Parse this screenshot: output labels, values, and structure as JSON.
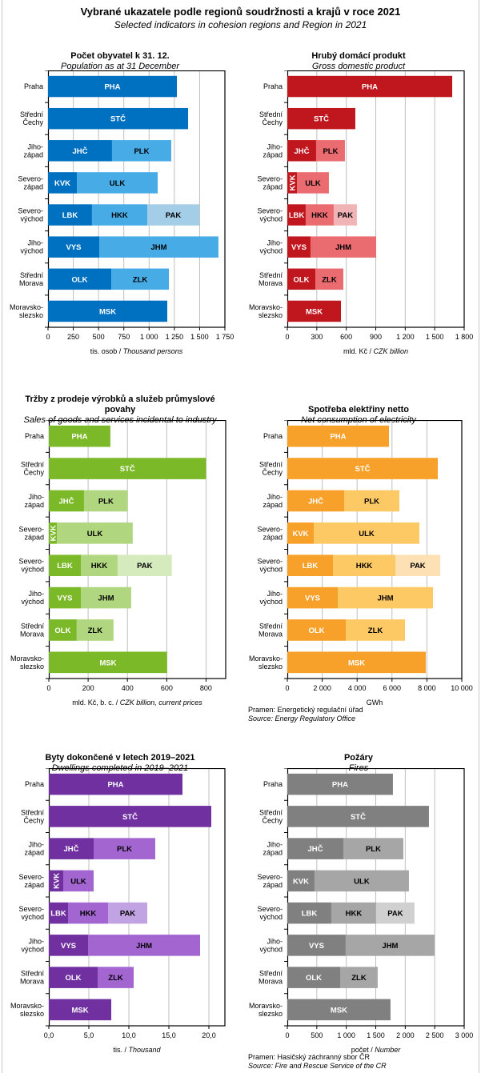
{
  "header": {
    "title": "Vybrané ukazatele podle regionů soudržnosti a krajů v roce 2021",
    "subtitle": "Selected indicators in cohesion regions and Region in 2021"
  },
  "chart_data": [
    {
      "id": "population",
      "type": "bar",
      "stacked": true,
      "orientation": "horizontal",
      "title": "Počet obyvatel k 31. 12.",
      "title_line2": "",
      "subtitle": "Population as at 31 December",
      "xlabel": "tis. osob / ",
      "xlabel_it": "Thousand persons",
      "xlim": [
        0,
        1750
      ],
      "ticks": [
        0,
        250,
        500,
        750,
        1000,
        1250,
        1500,
        1750
      ],
      "tick_labels": [
        "0",
        "250",
        "500",
        "750",
        "1 000",
        "1 250",
        "1 500",
        "1 750"
      ],
      "grid": true,
      "colors": [
        "#0070c0",
        "#47abe6",
        "#a4cde8"
      ],
      "label_colors": [
        "#ffffff",
        "#000000",
        "#000000"
      ],
      "categories": [
        "Praha",
        "Střední|Čechy",
        "Jiho-|západ",
        "Severo-|západ",
        "Severo-|východ",
        "Jiho-|východ",
        "Střední|Morava",
        "Moravsko-|slezsko"
      ],
      "segments": [
        [
          {
            "label": "PHA",
            "value": 1275
          }
        ],
        [
          {
            "label": "STČ",
            "value": 1386
          }
        ],
        [
          {
            "label": "JHČ",
            "value": 633
          },
          {
            "label": "PLK",
            "value": 586
          }
        ],
        [
          {
            "label": "KVK",
            "value": 285
          },
          {
            "label": "ULK",
            "value": 800
          }
        ],
        [
          {
            "label": "LBK",
            "value": 435
          },
          {
            "label": "HKK",
            "value": 547
          },
          {
            "label": "PAK",
            "value": 515
          }
        ],
        [
          {
            "label": "VYS",
            "value": 507
          },
          {
            "label": "JHM",
            "value": 1179
          }
        ],
        [
          {
            "label": "OLK",
            "value": 626
          },
          {
            "label": "ZLK",
            "value": 570
          }
        ],
        [
          {
            "label": "MSK",
            "value": 1180
          }
        ]
      ],
      "source": null
    },
    {
      "id": "gdp",
      "type": "bar",
      "stacked": true,
      "orientation": "horizontal",
      "title": "Hrubý domácí produkt",
      "title_line2": "",
      "subtitle": "Gross domestic product",
      "xlabel": "mld. Kč / ",
      "xlabel_it": "CZK billion",
      "xlim": [
        0,
        1800
      ],
      "ticks": [
        0,
        300,
        600,
        900,
        1200,
        1500,
        1800
      ],
      "tick_labels": [
        "0",
        "300",
        "600",
        "900",
        "1 200",
        "1 500",
        "1 800"
      ],
      "grid": true,
      "colors": [
        "#c0171f",
        "#ea6b70",
        "#f0b4b6"
      ],
      "label_colors": [
        "#ffffff",
        "#000000",
        "#000000"
      ],
      "categories": [
        "Praha",
        "Střední|Čechy",
        "Jiho-|západ",
        "Severo-|západ",
        "Severo-|východ",
        "Jiho-|východ",
        "Střední|Morava",
        "Moravsko-|slezsko"
      ],
      "segments": [
        [
          {
            "label": "PHA",
            "value": 1678
          }
        ],
        [
          {
            "label": "STČ",
            "value": 692
          }
        ],
        [
          {
            "label": "JHČ",
            "value": 293
          },
          {
            "label": "PLK",
            "value": 293
          }
        ],
        [
          {
            "label": "KVK",
            "value": 98,
            "vertical": true
          },
          {
            "label": "ULK",
            "value": 325
          }
        ],
        [
          {
            "label": "LBK",
            "value": 187
          },
          {
            "label": "HKK",
            "value": 285
          },
          {
            "label": "PAK",
            "value": 236
          }
        ],
        [
          {
            "label": "VYS",
            "value": 236
          },
          {
            "label": "JHM",
            "value": 668
          }
        ],
        [
          {
            "label": "OLK",
            "value": 285
          },
          {
            "label": "ZLK",
            "value": 285
          }
        ],
        [
          {
            "label": "MSK",
            "value": 546
          }
        ]
      ],
      "source": null
    },
    {
      "id": "industry-sales",
      "type": "bar",
      "stacked": true,
      "orientation": "horizontal",
      "title": "Tržby z prodeje výrobků a služeb průmyslové",
      "title_line2": "povahy",
      "subtitle": "Sales of goods and services incidental to industry",
      "xlabel": "mld. Kč, b. c. / ",
      "xlabel_it": "CZK billion, current prices",
      "xlim": [
        0,
        900
      ],
      "ticks": [
        0,
        200,
        400,
        600,
        800
      ],
      "tick_labels": [
        "0",
        "200",
        "400",
        "600",
        "800"
      ],
      "grid": true,
      "colors": [
        "#7cb928",
        "#b0d77f",
        "#d6ebbd"
      ],
      "label_colors": [
        "#ffffff",
        "#000000",
        "#000000"
      ],
      "categories": [
        "Praha",
        "Střední|Čechy",
        "Jiho-|západ",
        "Severo-|západ",
        "Severo-|východ",
        "Jiho-|východ",
        "Střední|Morava",
        "Moravsko-|slezsko"
      ],
      "segments": [
        [
          {
            "label": "PHA",
            "value": 313
          }
        ],
        [
          {
            "label": "STČ",
            "value": 800
          }
        ],
        [
          {
            "label": "JHČ",
            "value": 179
          },
          {
            "label": "PLK",
            "value": 223
          }
        ],
        [
          {
            "label": "KVK",
            "value": 41,
            "vertical": true
          },
          {
            "label": "ULK",
            "value": 386
          }
        ],
        [
          {
            "label": "LBK",
            "value": 163
          },
          {
            "label": "HKK",
            "value": 187
          },
          {
            "label": "PAK",
            "value": 276
          }
        ],
        [
          {
            "label": "VYS",
            "value": 163
          },
          {
            "label": "JHM",
            "value": 256
          }
        ],
        [
          {
            "label": "OLK",
            "value": 142
          },
          {
            "label": "ZLK",
            "value": 187
          }
        ],
        [
          {
            "label": "MSK",
            "value": 602
          }
        ]
      ],
      "source": null
    },
    {
      "id": "electricity",
      "type": "bar",
      "stacked": true,
      "orientation": "horizontal",
      "title": "Spotřeba elektřiny netto",
      "title_line2": "",
      "subtitle": "Net consumption of electricity",
      "xlabel": "GWh",
      "xlabel_it": "",
      "xlim": [
        0,
        10000
      ],
      "ticks": [
        0,
        2000,
        4000,
        6000,
        8000,
        10000
      ],
      "tick_labels": [
        "0",
        "2 000",
        "4 000",
        "6 000",
        "8 000",
        "10 000"
      ],
      "grid": true,
      "colors": [
        "#f7a12b",
        "#fdc964",
        "#fde0b4"
      ],
      "label_colors": [
        "#ffffff",
        "#000000",
        "#000000"
      ],
      "categories": [
        "Praha",
        "Střední|Čechy",
        "Jiho-|západ",
        "Severo-|západ",
        "Severo-|východ",
        "Jiho-|východ",
        "Střední|Morava",
        "Moravsko-|slezsko"
      ],
      "segments": [
        [
          {
            "label": "PHA",
            "value": 5826
          }
        ],
        [
          {
            "label": "STČ",
            "value": 8624
          }
        ],
        [
          {
            "label": "JHČ",
            "value": 3257
          },
          {
            "label": "PLK",
            "value": 3165
          }
        ],
        [
          {
            "label": "KVK",
            "value": 1514
          },
          {
            "label": "ULK",
            "value": 6055
          }
        ],
        [
          {
            "label": "LBK",
            "value": 2615
          },
          {
            "label": "HKK",
            "value": 3578
          },
          {
            "label": "PAK",
            "value": 2568
          }
        ],
        [
          {
            "label": "VYS",
            "value": 2890
          },
          {
            "label": "JHM",
            "value": 5459
          }
        ],
        [
          {
            "label": "OLK",
            "value": 3349
          },
          {
            "label": "ZLK",
            "value": 3394
          }
        ],
        [
          {
            "label": "MSK",
            "value": 7936
          }
        ]
      ],
      "source": {
        "cz": "Pramen: Energetický regulační úřad",
        "en": "Source: Energy Regulatory Office"
      }
    },
    {
      "id": "dwellings",
      "type": "bar",
      "stacked": true,
      "orientation": "horizontal",
      "title": "Byty dokončené v letech 2019–2021",
      "title_line2": "",
      "subtitle": "Dwellings completed in 2019–2021",
      "xlabel": "tis. / ",
      "xlabel_it": "Thousand",
      "xlim": [
        0,
        22
      ],
      "ticks": [
        0,
        5,
        10,
        15,
        20
      ],
      "tick_labels": [
        "0,0",
        "5,0",
        "10,0",
        "15,0",
        "20,0"
      ],
      "grid": true,
      "colors": [
        "#7030a0",
        "#a366d1",
        "#c1a3e3"
      ],
      "label_colors": [
        "#ffffff",
        "#000000",
        "#000000"
      ],
      "categories": [
        "Praha",
        "Střední|Čechy",
        "Jiho-|západ",
        "Severo-|západ",
        "Severo-|východ",
        "Jiho-|východ",
        "Střední|Morava",
        "Moravsko-|slezsko"
      ],
      "segments": [
        [
          {
            "label": "PHA",
            "value": 16.7
          }
        ],
        [
          {
            "label": "STČ",
            "value": 20.3
          }
        ],
        [
          {
            "label": "JHČ",
            "value": 5.6
          },
          {
            "label": "PLK",
            "value": 7.7
          }
        ],
        [
          {
            "label": "KVK",
            "value": 1.8,
            "vertical": true
          },
          {
            "label": "ULK",
            "value": 3.8
          }
        ],
        [
          {
            "label": "LBK",
            "value": 2.4
          },
          {
            "label": "HKK",
            "value": 5.0
          },
          {
            "label": "PAK",
            "value": 4.9
          }
        ],
        [
          {
            "label": "VYS",
            "value": 4.9
          },
          {
            "label": "JHM",
            "value": 14.0
          }
        ],
        [
          {
            "label": "OLK",
            "value": 6.1
          },
          {
            "label": "ZLK",
            "value": 4.5
          }
        ],
        [
          {
            "label": "MSK",
            "value": 7.8
          }
        ]
      ],
      "source": null
    },
    {
      "id": "fires",
      "type": "bar",
      "stacked": true,
      "orientation": "horizontal",
      "title": "Požáry",
      "title_line2": "",
      "subtitle": "Fires",
      "xlabel": "počet / ",
      "xlabel_it": "Number",
      "xlim": [
        0,
        3000
      ],
      "ticks": [
        0,
        500,
        1000,
        1500,
        2000,
        2500,
        3000
      ],
      "tick_labels": [
        "0",
        "500",
        "1 000",
        "1 500",
        "2 000",
        "2 500",
        "3 000"
      ],
      "grid": true,
      "colors": [
        "#808080",
        "#a6a6a6",
        "#d0d0d0"
      ],
      "label_colors": [
        "#ffffff",
        "#000000",
        "#000000"
      ],
      "categories": [
        "Praha",
        "Střední|Čechy",
        "Jiho-|západ",
        "Severo-|západ",
        "Severo-|východ",
        "Jiho-|východ",
        "Střední|Morava",
        "Moravsko-|slezsko"
      ],
      "segments": [
        [
          {
            "label": "PHA",
            "value": 1791
          }
        ],
        [
          {
            "label": "STČ",
            "value": 2402
          }
        ],
        [
          {
            "label": "JHČ",
            "value": 950
          },
          {
            "label": "PLK",
            "value": 1018
          }
        ],
        [
          {
            "label": "KVK",
            "value": 461
          },
          {
            "label": "ULK",
            "value": 1601
          }
        ],
        [
          {
            "label": "LBK",
            "value": 746
          },
          {
            "label": "HKK",
            "value": 760
          },
          {
            "label": "PAK",
            "value": 651
          }
        ],
        [
          {
            "label": "VYS",
            "value": 990
          },
          {
            "label": "JHM",
            "value": 1507
          }
        ],
        [
          {
            "label": "OLK",
            "value": 896
          },
          {
            "label": "ZLK",
            "value": 637
          }
        ],
        [
          {
            "label": "MSK",
            "value": 1750
          }
        ]
      ],
      "source": {
        "cz": "Pramen: Hasičský záchranný sbor ČR",
        "en": "Source: Fire and Rescue Service of the CR"
      }
    }
  ]
}
